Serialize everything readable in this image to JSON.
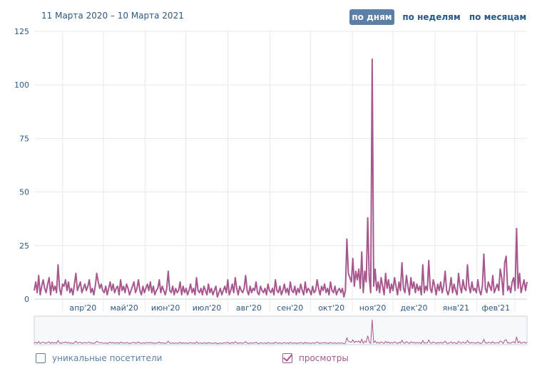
{
  "header": {
    "date_range": "11 Марта 2020 – 10 Марта 2021",
    "tabs": [
      {
        "label": "по дням",
        "active": true
      },
      {
        "label": "по неделям",
        "active": false
      },
      {
        "label": "по месяцам",
        "active": false
      }
    ]
  },
  "legend": {
    "items": [
      {
        "label": "уникальные посетители",
        "checked": false,
        "color": "#5b7fa6"
      },
      {
        "label": "просмотры",
        "checked": true,
        "color": "#a8578e"
      }
    ]
  },
  "chart_data": {
    "type": "line",
    "x_start": "2020-03-11",
    "x_end": "2021-03-10",
    "x_tick_labels": [
      "апр'20",
      "май'20",
      "июн'20",
      "июл'20",
      "авг'20",
      "сен'20",
      "окт'20",
      "ноя'20",
      "дек'20",
      "янв'21",
      "фев'21"
    ],
    "y_tick_labels": [
      "0",
      "25",
      "50",
      "75",
      "100",
      "125"
    ],
    "ylim": [
      0,
      125
    ],
    "grid": true,
    "series": [
      {
        "name": "просмотры",
        "color": "#a8578e",
        "values": [
          4,
          8,
          3,
          11,
          2,
          6,
          9,
          5,
          3,
          7,
          10,
          2,
          8,
          4,
          6,
          3,
          16,
          5,
          2,
          7,
          6,
          9,
          4,
          8,
          3,
          5,
          2,
          7,
          12,
          4,
          6,
          8,
          3,
          5,
          7,
          4,
          6,
          9,
          3,
          5,
          2,
          6,
          12,
          8,
          5,
          7,
          4,
          3,
          6,
          2,
          5,
          8,
          4,
          7,
          3,
          5,
          6,
          2,
          9,
          4,
          6,
          3,
          7,
          5,
          2,
          4,
          6,
          8,
          3,
          5,
          9,
          4,
          2,
          6,
          3,
          5,
          7,
          4,
          8,
          3,
          6,
          2,
          4,
          5,
          9,
          3,
          6,
          4,
          2,
          5,
          13,
          4,
          3,
          6,
          2,
          5,
          3,
          4,
          8,
          2,
          6,
          3,
          5,
          2,
          4,
          7,
          3,
          5,
          2,
          10,
          4,
          3,
          5,
          2,
          6,
          4,
          2,
          7,
          3,
          5,
          2,
          4,
          6,
          1,
          3,
          5,
          2,
          4,
          6,
          3,
          9,
          2,
          4,
          7,
          3,
          10,
          5,
          2,
          6,
          4,
          3,
          5,
          11,
          4,
          2,
          6,
          3,
          5,
          4,
          8,
          3,
          2,
          6,
          4,
          3,
          5,
          2,
          7,
          4,
          3,
          5,
          2,
          9,
          4,
          3,
          6,
          2,
          4,
          7,
          3,
          5,
          2,
          8,
          4,
          3,
          6,
          2,
          5,
          3,
          7,
          4,
          2,
          8,
          3,
          5,
          4,
          2,
          6,
          3,
          4,
          9,
          5,
          2,
          6,
          4,
          7,
          3,
          5,
          2,
          8,
          4,
          3,
          6,
          2,
          4,
          5,
          3,
          5,
          1,
          4,
          28,
          12,
          10,
          8,
          19,
          6,
          13,
          9,
          14,
          5,
          22,
          3,
          13,
          8,
          38,
          10,
          3,
          112,
          6,
          14,
          4,
          8,
          3,
          10,
          6,
          2,
          12,
          5,
          9,
          3,
          7,
          4,
          10,
          6,
          2,
          8,
          4,
          17,
          5,
          3,
          11,
          6,
          2,
          10,
          5,
          8,
          3,
          7,
          4,
          6,
          2,
          16,
          3,
          6,
          4,
          18,
          5,
          3,
          9,
          6,
          2,
          7,
          4,
          8,
          3,
          6,
          13,
          4,
          2,
          5,
          10,
          3,
          7,
          4,
          2,
          12,
          6,
          3,
          9,
          5,
          4,
          16,
          6,
          3,
          8,
          4,
          5,
          3,
          9,
          4,
          2,
          6,
          21,
          5,
          3,
          8,
          6,
          4,
          11,
          3,
          5,
          7,
          4,
          14,
          10,
          2,
          17,
          20,
          4,
          6,
          3,
          8,
          10,
          4,
          33,
          5,
          12,
          3,
          6,
          9,
          4,
          8
        ]
      }
    ]
  }
}
